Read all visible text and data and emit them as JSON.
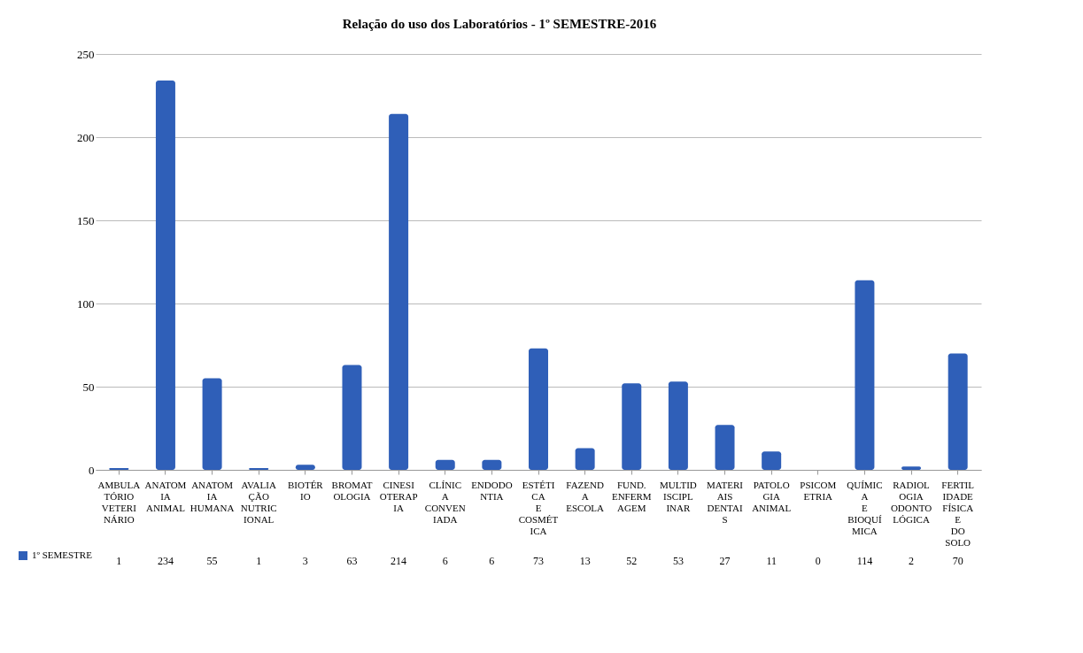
{
  "chart_data": {
    "type": "bar",
    "title": "Relação do uso dos Laboratórios - 1º SEMESTRE-2016",
    "categories": [
      "AMBULATÓRIO VETERINÁRIO",
      "ANATOMIA ANIMAL",
      "ANATOMIA HUMANA",
      "AVALIAÇÃO NUTRICIONAL",
      "BIOTÉRIO",
      "BROMATOLOGIA",
      "CINESIOTERAPIA",
      "CLÍNICA CONVENIADA",
      "ENDODONTIA",
      "ESTÉTICA E COSMÉTICA",
      "FAZENDA ESCOLA",
      "FUND. ENFERMAGEM",
      "MULTIDISCIPLINAR",
      "MATERIAIS DENTAIS",
      "PATOLOGIA ANIMAL",
      "PSICOMETRIA",
      "QUÍMICA E BIOQUÍMICA",
      "RADIOLOGIA ODONTOLÓGICA",
      "FERTILIDADE FÍSICA E DO SOLO"
    ],
    "series": [
      {
        "name": "1º SEMESTRE",
        "color": "#2f5fb8",
        "values": [
          1,
          234,
          55,
          1,
          3,
          63,
          214,
          6,
          6,
          73,
          13,
          52,
          53,
          27,
          11,
          0,
          114,
          2,
          70
        ]
      }
    ],
    "ylim": [
      0,
      250
    ],
    "yticks": [
      0,
      50,
      100,
      150,
      200,
      250
    ],
    "grid": "y",
    "data_labels": true,
    "legend": "bottom left"
  }
}
